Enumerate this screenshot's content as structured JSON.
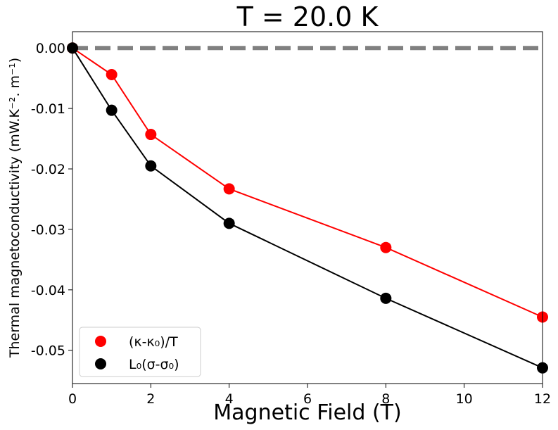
{
  "chart_data": {
    "type": "line",
    "title": "T = 20.0 K",
    "xlabel": "Magnetic Field (T)",
    "ylabel": "Thermal magnetoconductivity (mW.K⁻². m⁻¹)",
    "xlim": [
      0,
      12
    ],
    "ylim": [
      -0.0555,
      0.0027
    ],
    "xticks": [
      0,
      2,
      4,
      6,
      8,
      10,
      12
    ],
    "xtick_labels": [
      "0",
      "2",
      "4",
      "6",
      "8",
      "10",
      "12"
    ],
    "yticks": [
      0.0,
      -0.01,
      -0.02,
      -0.03,
      -0.04,
      -0.05
    ],
    "ytick_labels": [
      "0.00",
      "-0.01",
      "-0.02",
      "-0.03",
      "-0.04",
      "-0.05"
    ],
    "reference_line": {
      "y": 0,
      "style": "dashed",
      "color": "#808080"
    },
    "legend_position": "lower-left",
    "series": [
      {
        "name": "(κ-κ₀)/T",
        "color": "#ff0000",
        "x": [
          0,
          1,
          2,
          4,
          8,
          12
        ],
        "y": [
          0.0,
          -0.0044,
          -0.0143,
          -0.0233,
          -0.033,
          -0.0445
        ]
      },
      {
        "name": "L₀(σ-σ₀)",
        "color": "#000000",
        "x": [
          0,
          1,
          2,
          4,
          8,
          12
        ],
        "y": [
          0.0,
          -0.0103,
          -0.0195,
          -0.029,
          -0.0414,
          -0.0529
        ]
      }
    ]
  }
}
